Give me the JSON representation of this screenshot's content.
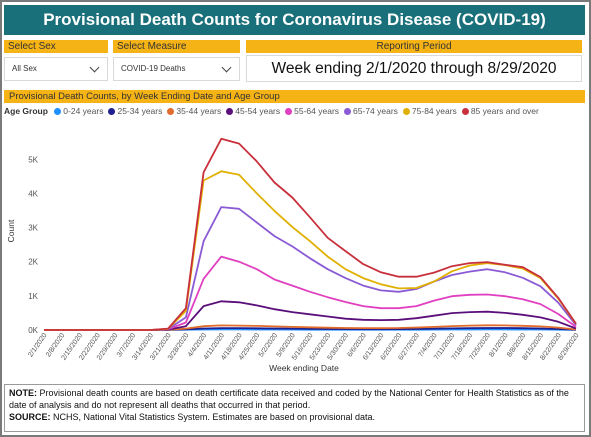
{
  "title": "Provisional Death Counts for Coronavirus Disease (COVID-19)",
  "filters": {
    "sex": {
      "label": "Select Sex",
      "value": "All Sex"
    },
    "measure": {
      "label": "Select Measure",
      "value": "COVID-19 Deaths"
    },
    "period": {
      "label": "Reporting Period",
      "value": "Week ending 2/1/2020 through 8/29/2020"
    }
  },
  "colors": {
    "header": "#19707a",
    "accent": "#f5b316"
  },
  "notes": {
    "note_label": "NOTE:",
    "note_text": "Provisional death counts are based on death certificate data received and coded by the National Center for Health Statistics as of the date of analysis and do not represent all deaths that occurred in that period.",
    "source_label": "SOURCE:",
    "source_text": "NCHS, National Vital Statistics System. Estimates are based on provisional data."
  },
  "chart_data": {
    "type": "line",
    "title": "Provisional Death Counts, by Week Ending Date and Age Group",
    "legend_title": "Age Group",
    "xlabel": "Week ending Date",
    "ylabel": "Count",
    "ylim": [
      0,
      5800
    ],
    "y_ticks": [
      0,
      1000,
      2000,
      3000,
      4000,
      5000
    ],
    "y_tick_labels": [
      "0K",
      "1K",
      "2K",
      "3K",
      "4K",
      "5K"
    ],
    "grid": false,
    "legend_position": "top",
    "x": [
      "2/1/2020",
      "2/8/2020",
      "2/15/2020",
      "2/22/2020",
      "2/29/2020",
      "3/7/2020",
      "3/14/2020",
      "3/21/2020",
      "3/28/2020",
      "4/4/2020",
      "4/11/2020",
      "4/18/2020",
      "4/25/2020",
      "5/2/2020",
      "5/9/2020",
      "5/16/2020",
      "5/23/2020",
      "5/30/2020",
      "6/6/2020",
      "6/13/2020",
      "6/20/2020",
      "6/27/2020",
      "7/4/2020",
      "7/11/2020",
      "7/18/2020",
      "7/25/2020",
      "8/1/2020",
      "8/8/2020",
      "8/15/2020",
      "8/22/2020",
      "8/29/2020"
    ],
    "series": [
      {
        "name": "0-24 years",
        "color": "#1e90ff",
        "values": [
          0,
          0,
          0,
          0,
          0,
          0,
          0,
          2,
          8,
          15,
          18,
          18,
          16,
          14,
          12,
          10,
          9,
          8,
          8,
          8,
          8,
          9,
          11,
          14,
          16,
          18,
          17,
          16,
          14,
          10,
          3
        ]
      },
      {
        "name": "25-34 years",
        "color": "#1f1f8f",
        "values": [
          0,
          0,
          0,
          0,
          0,
          0,
          0,
          3,
          20,
          45,
          55,
          55,
          50,
          45,
          40,
          34,
          30,
          25,
          24,
          24,
          26,
          30,
          38,
          48,
          55,
          60,
          58,
          52,
          44,
          30,
          8
        ]
      },
      {
        "name": "35-44 years",
        "color": "#e06c2d",
        "values": [
          0,
          0,
          0,
          0,
          0,
          0,
          0,
          5,
          40,
          110,
          135,
          130,
          120,
          105,
          92,
          80,
          68,
          58,
          55,
          56,
          60,
          72,
          92,
          115,
          130,
          138,
          134,
          122,
          104,
          70,
          15
        ]
      },
      {
        "name": "45-54 years",
        "color": "#5a0f7a",
        "values": [
          0,
          0,
          0,
          0,
          0,
          0,
          0,
          12,
          110,
          700,
          840,
          810,
          720,
          610,
          525,
          460,
          395,
          330,
          300,
          290,
          300,
          345,
          420,
          495,
          525,
          535,
          500,
          445,
          370,
          240,
          45
        ]
      },
      {
        "name": "55-64 years",
        "color": "#e040c0",
        "values": [
          0,
          0,
          0,
          0,
          0,
          0,
          0,
          22,
          220,
          1500,
          2150,
          2000,
          1780,
          1480,
          1300,
          1120,
          960,
          820,
          700,
          640,
          640,
          700,
          860,
          990,
          1030,
          1040,
          990,
          900,
          760,
          470,
          90
        ]
      },
      {
        "name": "65-74 years",
        "color": "#8a5bd4",
        "values": [
          0,
          0,
          0,
          0,
          0,
          0,
          0,
          30,
          370,
          2600,
          3600,
          3550,
          3150,
          2750,
          2450,
          2100,
          1780,
          1520,
          1300,
          1160,
          1120,
          1200,
          1420,
          1610,
          1710,
          1780,
          1690,
          1530,
          1280,
          800,
          140
        ]
      },
      {
        "name": "75-84 years",
        "color": "#e0b000",
        "values": [
          0,
          0,
          0,
          0,
          0,
          0,
          0,
          35,
          560,
          4380,
          4650,
          4550,
          4000,
          3490,
          3020,
          2600,
          2150,
          1780,
          1520,
          1340,
          1220,
          1230,
          1420,
          1720,
          1890,
          1960,
          1900,
          1800,
          1520,
          920,
          180
        ]
      },
      {
        "name": "85 years and over",
        "color": "#c8303c",
        "values": [
          0,
          0,
          0,
          0,
          0,
          0,
          0,
          40,
          640,
          4620,
          5600,
          5460,
          4940,
          4320,
          3880,
          3300,
          2700,
          2310,
          1930,
          1690,
          1560,
          1560,
          1680,
          1870,
          1960,
          1990,
          1910,
          1840,
          1550,
          940,
          185
        ]
      }
    ]
  }
}
